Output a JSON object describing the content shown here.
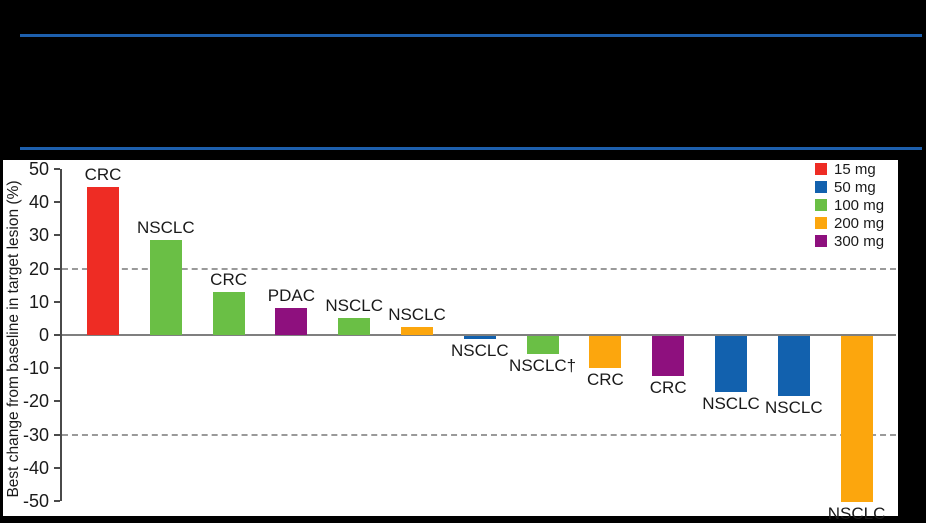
{
  "colors": {
    "background": "#000000",
    "panel": "#ffffff",
    "header_rule": "#1d5fad",
    "axis": "#4a4a4a",
    "zero_line": "#7f7f7f",
    "dashed_line": "#9a9a9a",
    "text": "#1a1a1a"
  },
  "chart_data": {
    "type": "bar",
    "subtype": "waterfall",
    "title": "",
    "ylabel": "Best change from baseline in target lesion (%)",
    "xlabel": "",
    "ylim": [
      -50,
      50
    ],
    "ytick_step": 10,
    "yticks": [
      50,
      40,
      30,
      20,
      10,
      0,
      -10,
      -20,
      -30,
      -40,
      -50
    ],
    "reference_lines": [
      20,
      -30
    ],
    "grid": "off",
    "legend_position": "top-right",
    "legend": [
      {
        "label": "15 mg",
        "color": "#ee2c24"
      },
      {
        "label": "50 mg",
        "color": "#1261ae"
      },
      {
        "label": "100 mg",
        "color": "#6abf45"
      },
      {
        "label": "200 mg",
        "color": "#fca60d"
      },
      {
        "label": "300 mg",
        "color": "#8e107e"
      }
    ],
    "bars": [
      {
        "label": "CRC",
        "dose": "15 mg",
        "value": 44.5
      },
      {
        "label": "NSCLC",
        "dose": "100 mg",
        "value": 28.5
      },
      {
        "label": "CRC",
        "dose": "100 mg",
        "value": 13
      },
      {
        "label": "PDAC",
        "dose": "300 mg",
        "value": 8
      },
      {
        "label": "NSCLC",
        "dose": "100 mg",
        "value": 5
      },
      {
        "label": "NSCLC",
        "dose": "200 mg",
        "value": 2.5
      },
      {
        "label": "NSCLC",
        "dose": "50 mg",
        "value": -1
      },
      {
        "label": "NSCLC†",
        "dose": "100 mg",
        "value": -5.5
      },
      {
        "label": "CRC",
        "dose": "200 mg",
        "value": -9.5
      },
      {
        "label": "CRC",
        "dose": "300 mg",
        "value": -12
      },
      {
        "label": "NSCLC",
        "dose": "50 mg",
        "value": -17
      },
      {
        "label": "NSCLC",
        "dose": "50 mg",
        "value": -18
      },
      {
        "label": "NSCLC",
        "dose": "200 mg",
        "value": -50
      }
    ]
  }
}
